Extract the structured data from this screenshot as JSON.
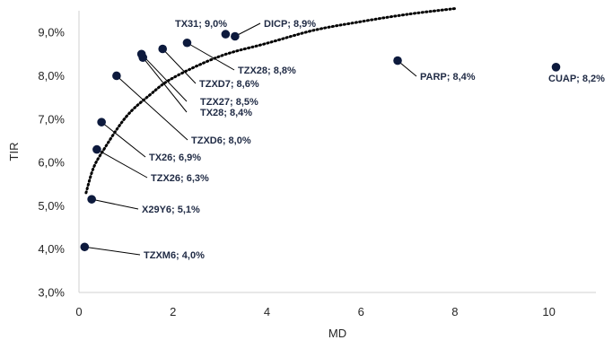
{
  "chart_data": {
    "type": "scatter",
    "title": "",
    "xlabel": "MD",
    "ylabel": "TIR",
    "xlim": [
      0,
      11
    ],
    "ylim": [
      0.03,
      0.095
    ],
    "x_ticks": [
      0,
      2,
      4,
      6,
      8,
      10
    ],
    "x_tick_labels": [
      "0",
      "2",
      "4",
      "6",
      "8",
      "10"
    ],
    "y_ticks": [
      0.03,
      0.04,
      0.05,
      0.06,
      0.07,
      0.08,
      0.09
    ],
    "y_tick_labels": [
      "3,0%",
      "4,0%",
      "5,0%",
      "6,0%",
      "7,0%",
      "8,0%",
      "9,0%"
    ],
    "grid": false,
    "marker_color": "#0d1a3d",
    "trendline": {
      "type": "logarithmic",
      "style": "dotted",
      "color": "#000000",
      "x_range": [
        0.15,
        8.0
      ],
      "points": [
        {
          "x": 0.15,
          "y": 0.053
        },
        {
          "x": 0.3,
          "y": 0.0585
        },
        {
          "x": 0.5,
          "y": 0.0625
        },
        {
          "x": 1.0,
          "y": 0.0705
        },
        {
          "x": 1.5,
          "y": 0.0755
        },
        {
          "x": 2.0,
          "y": 0.0795
        },
        {
          "x": 3.0,
          "y": 0.0845
        },
        {
          "x": 4.0,
          "y": 0.0875
        },
        {
          "x": 5.0,
          "y": 0.0905
        },
        {
          "x": 6.0,
          "y": 0.0925
        },
        {
          "x": 7.0,
          "y": 0.0942
        },
        {
          "x": 8.0,
          "y": 0.0955
        }
      ]
    },
    "points": [
      {
        "name": "TZXM6",
        "label": "TZXM6; 4,0%",
        "x": 0.12,
        "y": 0.0405
      },
      {
        "name": "X29Y6",
        "label": "X29Y6; 5,1%",
        "x": 0.27,
        "y": 0.0515
      },
      {
        "name": "TZX26",
        "label": "TZX26; 6,3%",
        "x": 0.38,
        "y": 0.063
      },
      {
        "name": "TX26",
        "label": "TX26; 6,9%",
        "x": 0.48,
        "y": 0.0693
      },
      {
        "name": "TZXD6",
        "label": "TZXD6; 8,0%",
        "x": 0.8,
        "y": 0.08
      },
      {
        "name": "TX28",
        "label": "TX28; 8,4%",
        "x": 1.36,
        "y": 0.0842
      },
      {
        "name": "TZX27",
        "label": "TZX27; 8,5%",
        "x": 1.33,
        "y": 0.085
      },
      {
        "name": "TZXD7",
        "label": "TZXD7; 8,6%",
        "x": 1.78,
        "y": 0.0862
      },
      {
        "name": "TZX28",
        "label": "TZX28; 8,8%",
        "x": 2.3,
        "y": 0.0876
      },
      {
        "name": "TX31",
        "label": "TX31; 9,0%",
        "x": 3.12,
        "y": 0.0896
      },
      {
        "name": "DICP",
        "label": "DICP; 8,9%",
        "x": 3.32,
        "y": 0.0891
      },
      {
        "name": "PARP",
        "label": "PARP; 8,4%",
        "x": 6.78,
        "y": 0.0835
      },
      {
        "name": "CUAP",
        "label": "CUAP; 8,2%",
        "x": 10.15,
        "y": 0.082
      }
    ]
  }
}
